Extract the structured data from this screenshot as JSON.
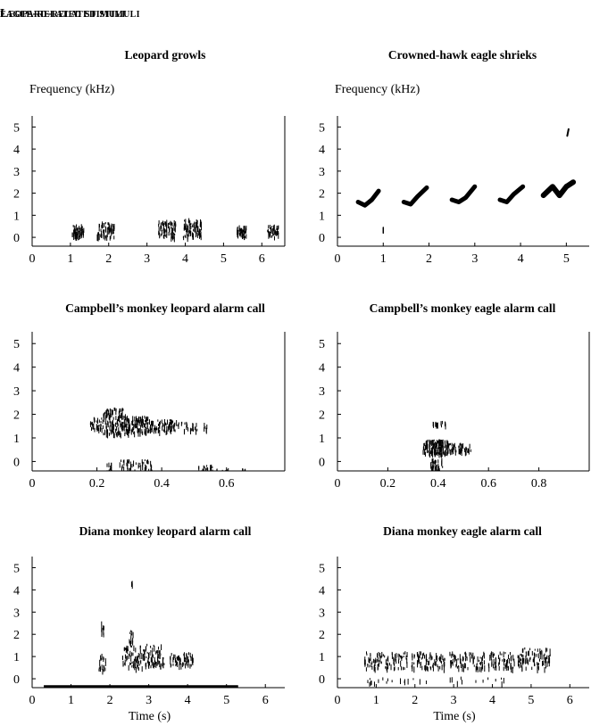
{
  "headers": {
    "left": "Leopard-related stimuli",
    "right": "eagle-related stimuli"
  },
  "ylabel": "Frequency (kHz)",
  "xlabel": "Time (s)",
  "chart_data": [
    {
      "id": "leopard-growls",
      "type": "spectrogram",
      "title": "Leopard growls",
      "ylabel": "Frequency (kHz)",
      "xlabel": "",
      "xlim": [
        0,
        6.6
      ],
      "ylim": [
        -0.4,
        5.5
      ],
      "xticks": [
        0,
        1,
        2,
        3,
        4,
        5,
        6
      ],
      "yticks": [
        0,
        1,
        2,
        3,
        4,
        5
      ],
      "right_axis": true,
      "segments": [
        {
          "x": [
            1.05,
            1.35
          ],
          "y": [
            0.05,
            0.6
          ],
          "density": 60
        },
        {
          "x": [
            1.7,
            2.15
          ],
          "y": [
            0.05,
            0.75
          ],
          "density": 70
        },
        {
          "x": [
            3.3,
            3.75
          ],
          "y": [
            0.05,
            0.8
          ],
          "density": 70
        },
        {
          "x": [
            3.95,
            4.45
          ],
          "y": [
            0.05,
            0.9
          ],
          "density": 80
        },
        {
          "x": [
            5.35,
            5.6
          ],
          "y": [
            0.05,
            0.55
          ],
          "density": 45
        },
        {
          "x": [
            6.15,
            6.45
          ],
          "y": [
            0.05,
            0.6
          ],
          "density": 45
        }
      ]
    },
    {
      "id": "crowned-hawk-eagle-shrieks",
      "type": "spectrogram",
      "title": "Crowned-hawk eagle shrieks",
      "ylabel": "Frequency (kHz)",
      "xlabel": "",
      "xlim": [
        0,
        5.5
      ],
      "ylim": [
        -0.4,
        5.5
      ],
      "xticks": [
        0,
        1,
        2,
        3,
        4,
        5
      ],
      "yticks": [
        0,
        1,
        2,
        3,
        4,
        5
      ],
      "right_axis": false,
      "strokes": [
        {
          "points": [
            [
              0.45,
              1.6
            ],
            [
              0.6,
              1.45
            ],
            [
              0.75,
              1.7
            ],
            [
              0.9,
              2.1
            ]
          ],
          "width": 5
        },
        {
          "points": [
            [
              1.45,
              1.6
            ],
            [
              1.6,
              1.5
            ],
            [
              1.75,
              1.85
            ],
            [
              1.95,
              2.25
            ]
          ],
          "width": 5
        },
        {
          "points": [
            [
              2.5,
              1.7
            ],
            [
              2.65,
              1.6
            ],
            [
              2.8,
              1.8
            ],
            [
              3.0,
              2.3
            ]
          ],
          "width": 5
        },
        {
          "points": [
            [
              3.55,
              1.7
            ],
            [
              3.7,
              1.6
            ],
            [
              3.85,
              1.95
            ],
            [
              4.05,
              2.3
            ]
          ],
          "width": 5
        },
        {
          "points": [
            [
              4.5,
              1.9
            ],
            [
              4.7,
              2.3
            ],
            [
              4.85,
              1.9
            ],
            [
              5.0,
              2.3
            ],
            [
              5.15,
              2.5
            ]
          ],
          "width": 6
        },
        {
          "points": [
            [
              5.02,
              4.6
            ],
            [
              5.05,
              4.9
            ]
          ],
          "width": 2
        },
        {
          "points": [
            [
              1.0,
              0.2
            ],
            [
              1.0,
              0.45
            ]
          ],
          "width": 1.5
        }
      ]
    },
    {
      "id": "campbells-leopard-alarm",
      "type": "spectrogram",
      "title": "Campbell’s monkey leopard alarm call",
      "ylabel": "",
      "xlabel": "",
      "xlim": [
        0,
        0.78
      ],
      "ylim": [
        -0.4,
        5.5
      ],
      "xticks": [
        0,
        0.2,
        0.4,
        0.6
      ],
      "yticks": [
        0,
        1,
        2,
        3,
        4,
        5
      ],
      "right_axis": true,
      "segments": [
        {
          "x": [
            0.18,
            0.22
          ],
          "y": [
            1.4,
            1.9
          ],
          "density": 30
        },
        {
          "x": [
            0.22,
            0.29
          ],
          "y": [
            1.2,
            2.3
          ],
          "density": 140
        },
        {
          "x": [
            0.29,
            0.36
          ],
          "y": [
            1.25,
            1.95
          ],
          "density": 110
        },
        {
          "x": [
            0.36,
            0.45
          ],
          "y": [
            1.3,
            1.8
          ],
          "density": 80
        },
        {
          "x": [
            0.45,
            0.51
          ],
          "y": [
            1.35,
            1.7
          ],
          "density": 25
        },
        {
          "x": [
            0.53,
            0.54
          ],
          "y": [
            1.4,
            1.65
          ],
          "density": 6
        },
        {
          "x": [
            0.23,
            0.25
          ],
          "y": [
            -0.4,
            0.0
          ],
          "density": 12
        },
        {
          "x": [
            0.27,
            0.37
          ],
          "y": [
            -0.4,
            0.1
          ],
          "density": 55
        },
        {
          "x": [
            0.51,
            0.56
          ],
          "y": [
            -0.4,
            -0.1
          ],
          "density": 18
        },
        {
          "x": [
            0.56,
            0.66
          ],
          "y": [
            -0.4,
            -0.28
          ],
          "density": 10
        }
      ]
    },
    {
      "id": "campbells-eagle-alarm",
      "type": "spectrogram",
      "title": "Campbell’s monkey eagle alarm call",
      "ylabel": "",
      "xlabel": "",
      "xlim": [
        0,
        1.0
      ],
      "ylim": [
        -0.4,
        5.5
      ],
      "xticks": [
        0,
        0.2,
        0.4,
        0.6,
        0.8
      ],
      "yticks": [
        0,
        1,
        2,
        3,
        4,
        5
      ],
      "right_axis": true,
      "segments": [
        {
          "x": [
            0.34,
            0.44
          ],
          "y": [
            0.35,
            0.95
          ],
          "density": 150
        },
        {
          "x": [
            0.44,
            0.53
          ],
          "y": [
            0.45,
            0.8
          ],
          "density": 50
        },
        {
          "x": [
            0.37,
            0.42
          ],
          "y": [
            -0.4,
            0.15
          ],
          "density": 40
        },
        {
          "x": [
            0.38,
            0.4
          ],
          "y": [
            1.55,
            1.75
          ],
          "density": 8
        },
        {
          "x": [
            0.41,
            0.43
          ],
          "y": [
            1.55,
            1.75
          ],
          "density": 8
        }
      ]
    },
    {
      "id": "diana-leopard-alarm",
      "type": "spectrogram",
      "title": "Diana monkey leopard alarm call",
      "ylabel": "",
      "xlabel": "Time (s)",
      "xlim": [
        0,
        6.5
      ],
      "ylim": [
        -0.4,
        5.5
      ],
      "xticks": [
        0,
        1,
        2,
        3,
        4,
        5,
        6
      ],
      "yticks": [
        0,
        1,
        2,
        3,
        4,
        5
      ],
      "right_axis": false,
      "baseline": [
        0.3,
        5.3
      ],
      "segments": [
        {
          "x": [
            1.7,
            1.9
          ],
          "y": [
            0.4,
            1.2
          ],
          "density": 18
        },
        {
          "x": [
            1.78,
            1.85
          ],
          "y": [
            1.9,
            2.6
          ],
          "density": 10
        },
        {
          "x": [
            2.3,
            2.9
          ],
          "y": [
            0.5,
            1.5
          ],
          "density": 70
        },
        {
          "x": [
            2.5,
            2.6
          ],
          "y": [
            1.6,
            2.2
          ],
          "density": 12
        },
        {
          "x": [
            2.55,
            2.6
          ],
          "y": [
            4.2,
            4.45
          ],
          "density": 3
        },
        {
          "x": [
            2.9,
            3.4
          ],
          "y": [
            0.6,
            1.6
          ],
          "density": 70
        },
        {
          "x": [
            3.55,
            4.15
          ],
          "y": [
            0.65,
            1.2
          ],
          "density": 60
        }
      ]
    },
    {
      "id": "diana-eagle-alarm",
      "type": "spectrogram",
      "title": "Diana monkey eagle alarm call",
      "ylabel": "",
      "xlabel": "Time (s)",
      "xlim": [
        0,
        6.5
      ],
      "ylim": [
        -0.4,
        5.5
      ],
      "xticks": [
        0,
        1,
        2,
        3,
        4,
        5,
        6
      ],
      "yticks": [
        0,
        1,
        2,
        3,
        4,
        5
      ],
      "right_axis": false,
      "segments": [
        {
          "x": [
            0.7,
            1.8
          ],
          "y": [
            0.5,
            1.25
          ],
          "density": 90
        },
        {
          "x": [
            1.9,
            2.8
          ],
          "y": [
            0.5,
            1.25
          ],
          "density": 80
        },
        {
          "x": [
            2.9,
            3.8
          ],
          "y": [
            0.5,
            1.25
          ],
          "density": 80
        },
        {
          "x": [
            3.9,
            4.6
          ],
          "y": [
            0.5,
            1.25
          ],
          "density": 60
        },
        {
          "x": [
            4.65,
            5.5
          ],
          "y": [
            0.5,
            1.45
          ],
          "density": 90
        },
        {
          "x": [
            0.7,
            4.3
          ],
          "y": [
            -0.15,
            0.1
          ],
          "density": 30
        }
      ]
    }
  ]
}
